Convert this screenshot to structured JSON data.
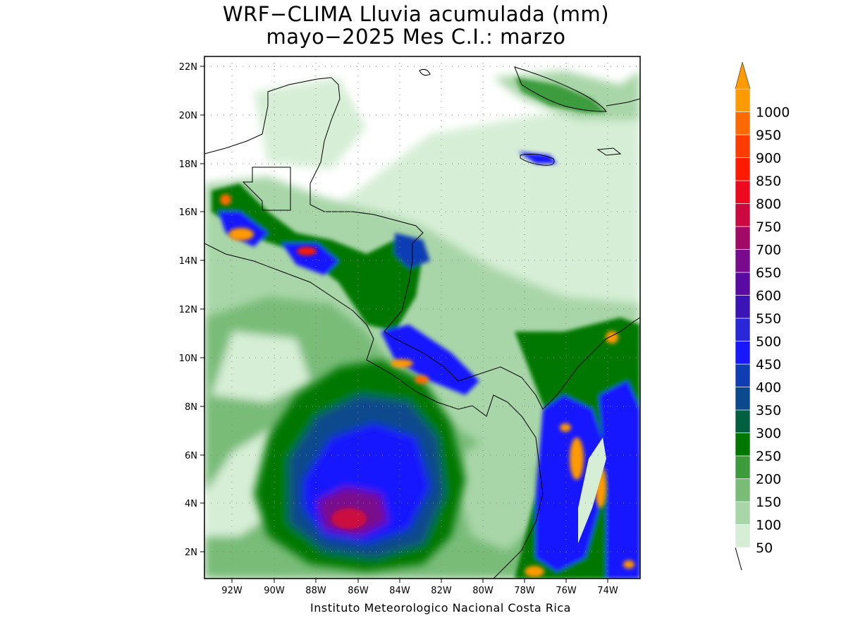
{
  "title": {
    "line1": "WRF−CLIMA Lluvia acumulada (mm)",
    "line2": "mayo−2025 Mes C.I.: marzo"
  },
  "footer": "Instituto Meteorologico Nacional Costa Rica",
  "map": {
    "lat_labels": [
      "22N",
      "20N",
      "18N",
      "16N",
      "14N",
      "12N",
      "10N",
      "8N",
      "6N",
      "4N",
      "2N"
    ],
    "lon_labels": [
      "92W",
      "90W",
      "88W",
      "86W",
      "84W",
      "82W",
      "80W",
      "78W",
      "76W",
      "74W"
    ],
    "lat_range": [
      1,
      22.4
    ],
    "lon_range": [
      -93,
      -72.6
    ]
  },
  "colorbar": {
    "levels": [
      "50",
      "100",
      "150",
      "200",
      "250",
      "300",
      "350",
      "400",
      "450",
      "500",
      "550",
      "600",
      "650",
      "700",
      "750",
      "800",
      "850",
      "900",
      "950",
      "1000"
    ],
    "colors": [
      "#d6eed6",
      "#a8d6a8",
      "#78bc78",
      "#3c9c3c",
      "#007800",
      "#006040",
      "#0a4a8c",
      "#103cb4",
      "#1818ff",
      "#2828d8",
      "#3a14b4",
      "#5a0aa0",
      "#7a0a8c",
      "#a00a64",
      "#cc0840",
      "#ee0a1e",
      "#ff1a00",
      "#ff3c00",
      "#ff6a00",
      "#ff9a00"
    ]
  }
}
